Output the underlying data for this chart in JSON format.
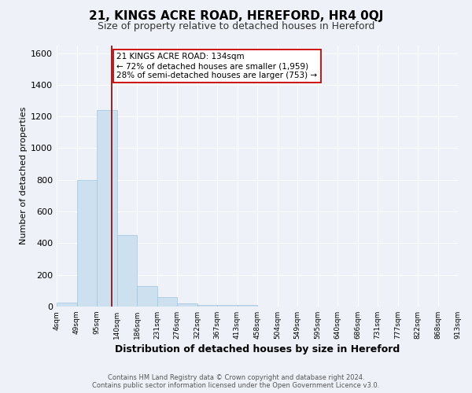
{
  "title": "21, KINGS ACRE ROAD, HEREFORD, HR4 0QJ",
  "subtitle": "Size of property relative to detached houses in Hereford",
  "xlabel": "Distribution of detached houses by size in Hereford",
  "ylabel": "Number of detached properties",
  "bar_color": "#cce0f0",
  "bar_edge_color": "#a0c4e0",
  "vline_color": "#8b0000",
  "background_color": "#eef2f8",
  "annotation_text": "21 KINGS ACRE ROAD: 134sqm\n← 72% of detached houses are smaller (1,959)\n28% of semi-detached houses are larger (753) →",
  "footer_line1": "Contains HM Land Registry data © Crown copyright and database right 2024.",
  "footer_line2": "Contains public sector information licensed under the Open Government Licence v3.0.",
  "bins": [
    "4sqm",
    "49sqm",
    "95sqm",
    "140sqm",
    "186sqm",
    "231sqm",
    "276sqm",
    "322sqm",
    "367sqm",
    "413sqm",
    "458sqm",
    "504sqm",
    "549sqm",
    "595sqm",
    "640sqm",
    "686sqm",
    "731sqm",
    "777sqm",
    "822sqm",
    "868sqm",
    "913sqm"
  ],
  "values": [
    25,
    800,
    1240,
    450,
    130,
    60,
    20,
    12,
    10,
    10,
    0,
    0,
    0,
    0,
    0,
    0,
    0,
    0,
    0,
    0
  ],
  "vline_position": 2.75,
  "ylim": [
    0,
    1650
  ],
  "yticks": [
    0,
    200,
    400,
    600,
    800,
    1000,
    1200,
    1400,
    1600
  ]
}
